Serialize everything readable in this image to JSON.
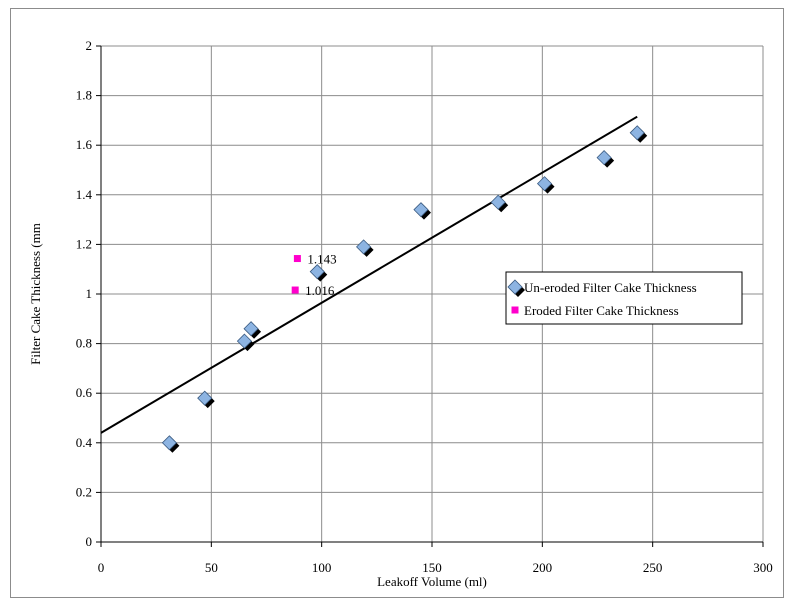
{
  "chart_data": {
    "type": "scatter",
    "xlabel": "Leakoff Volume (ml)",
    "ylabel": "Filter Cake Thickness (mm",
    "xlim": [
      0,
      300
    ],
    "ylim": [
      0,
      2
    ],
    "x_ticks": [
      "0",
      "50",
      "100",
      "150",
      "200",
      "250",
      "300"
    ],
    "y_ticks": [
      "0",
      "0.2",
      "0.4",
      "0.6",
      "0.8",
      "1",
      "1.2",
      "1.4",
      "1.6",
      "1.8",
      "2"
    ],
    "grid": true,
    "legend_position": "right",
    "series": [
      {
        "name": "Un-eroded Filter Cake Thickness",
        "marker": "diamond",
        "color": "#8db4e2",
        "x": [
          31,
          47,
          65,
          68,
          98,
          119,
          145,
          180,
          201,
          228,
          243
        ],
        "y": [
          0.4,
          0.58,
          0.81,
          0.86,
          1.09,
          1.19,
          1.34,
          1.37,
          1.445,
          1.55,
          1.65
        ]
      },
      {
        "name": "Eroded Filter Cake Thickness",
        "marker": "square",
        "color": "#ff00cc",
        "x": [
          89,
          88
        ],
        "y": [
          1.143,
          1.016
        ],
        "labels": [
          "1.143",
          "1.016"
        ]
      }
    ],
    "trendline": {
      "x": [
        0,
        243
      ],
      "y": [
        0.44,
        1.715
      ],
      "color": "#000000"
    }
  }
}
